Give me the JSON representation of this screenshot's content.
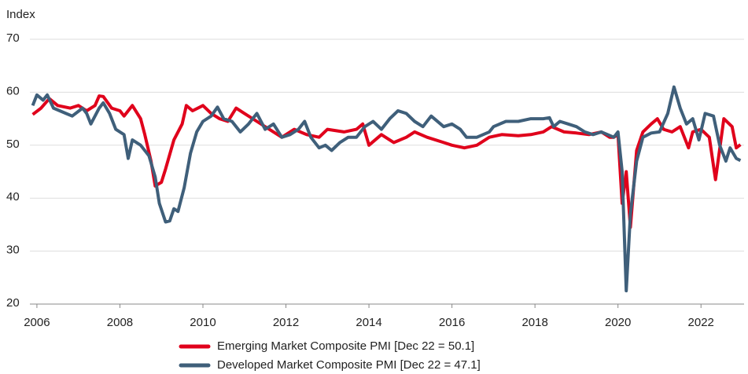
{
  "chart_data": {
    "type": "line",
    "y_label": "Index",
    "xlim": [
      2005.85,
      2023.0
    ],
    "xticks": [
      2006,
      2008,
      2010,
      2012,
      2014,
      2016,
      2018,
      2020,
      2022
    ],
    "ylim": [
      20,
      70
    ],
    "yticks": [
      20,
      30,
      40,
      50,
      60,
      70
    ],
    "grid": true,
    "legend": "bottom",
    "series": [
      {
        "name": "Emerging Market Composite PMI [Dec 22 = 50.1]",
        "color": "#e0001b",
        "x": [
          2005.9,
          2006.1,
          2006.3,
          2006.5,
          2006.8,
          2007.0,
          2007.2,
          2007.4,
          2007.5,
          2007.6,
          2007.8,
          2008.0,
          2008.1,
          2008.3,
          2008.5,
          2008.6,
          2008.75,
          2008.85,
          2009.0,
          2009.1,
          2009.3,
          2009.5,
          2009.6,
          2009.75,
          2010.0,
          2010.2,
          2010.4,
          2010.6,
          2010.8,
          2011.0,
          2011.3,
          2011.6,
          2011.9,
          2012.2,
          2012.5,
          2012.8,
          2013.0,
          2013.4,
          2013.7,
          2013.85,
          2014.0,
          2014.3,
          2014.6,
          2014.9,
          2015.1,
          2015.4,
          2015.8,
          2016.0,
          2016.3,
          2016.6,
          2016.9,
          2017.2,
          2017.6,
          2017.9,
          2018.2,
          2018.4,
          2018.7,
          2019.0,
          2019.3,
          2019.6,
          2019.8,
          2019.9,
          2020.0,
          2020.1,
          2020.2,
          2020.3,
          2020.45,
          2020.6,
          2020.8,
          2020.95,
          2021.1,
          2021.3,
          2021.5,
          2021.7,
          2021.8,
          2022.0,
          2022.2,
          2022.35,
          2022.55,
          2022.75,
          2022.85,
          2022.95
        ],
        "values": [
          55.8,
          57,
          58.8,
          57.5,
          57,
          57.5,
          56.5,
          57.5,
          59.3,
          59.2,
          57,
          56.5,
          55.5,
          57.5,
          55,
          52,
          47,
          42.3,
          43,
          45.5,
          51,
          54,
          57.5,
          56.5,
          57.5,
          56,
          55,
          54.5,
          57,
          56,
          54.5,
          53,
          51.5,
          53,
          52,
          51.5,
          53,
          52.5,
          53,
          54,
          50,
          52,
          50.5,
          51.5,
          52.5,
          51.5,
          50.5,
          50,
          49.5,
          50,
          51.5,
          52,
          51.8,
          52,
          52.5,
          53.5,
          52.5,
          52.3,
          52,
          52.5,
          51.5,
          51.5,
          52,
          39,
          45,
          34.5,
          49,
          52.5,
          54,
          55,
          53,
          52.5,
          53.5,
          49.5,
          52.5,
          53,
          51.5,
          43.5,
          55,
          53.5,
          49.5,
          50.1
        ]
      },
      {
        "name": "Developed Market Composite PMI [Dec 22 = 47.1]",
        "color": "#3f5f7a",
        "x": [
          2005.9,
          2006.0,
          2006.15,
          2006.25,
          2006.4,
          2006.7,
          2006.85,
          2007.1,
          2007.2,
          2007.3,
          2007.5,
          2007.6,
          2007.75,
          2007.9,
          2008.1,
          2008.2,
          2008.3,
          2008.5,
          2008.7,
          2008.85,
          2008.95,
          2009.1,
          2009.2,
          2009.3,
          2009.4,
          2009.55,
          2009.7,
          2009.85,
          2010.0,
          2010.2,
          2010.35,
          2010.5,
          2010.7,
          2010.9,
          2011.1,
          2011.3,
          2011.5,
          2011.7,
          2011.9,
          2012.1,
          2012.3,
          2012.45,
          2012.6,
          2012.8,
          2012.95,
          2013.1,
          2013.3,
          2013.5,
          2013.7,
          2013.9,
          2014.1,
          2014.3,
          2014.5,
          2014.7,
          2014.9,
          2015.1,
          2015.3,
          2015.5,
          2015.8,
          2016.0,
          2016.2,
          2016.35,
          2016.6,
          2016.9,
          2017.0,
          2017.3,
          2017.6,
          2017.9,
          2018.2,
          2018.35,
          2018.45,
          2018.6,
          2018.8,
          2019.0,
          2019.2,
          2019.4,
          2019.6,
          2019.9,
          2020.0,
          2020.1,
          2020.2,
          2020.3,
          2020.45,
          2020.6,
          2020.8,
          2021.0,
          2021.2,
          2021.35,
          2021.5,
          2021.65,
          2021.8,
          2021.95,
          2022.1,
          2022.3,
          2022.45,
          2022.6,
          2022.7,
          2022.85,
          2022.95
        ],
        "values": [
          57.5,
          59.5,
          58.5,
          59.5,
          57,
          56,
          55.5,
          57,
          56,
          54,
          57,
          58,
          56,
          53,
          52,
          47.5,
          51,
          50,
          48,
          44,
          39,
          35.5,
          35.7,
          38,
          37.5,
          42,
          48.5,
          52.5,
          54.5,
          55.5,
          57.2,
          55,
          54.5,
          52.5,
          54,
          56,
          53,
          54,
          51.5,
          52,
          53,
          54.5,
          51.5,
          49.5,
          50,
          49,
          50.5,
          51.5,
          51.5,
          53.5,
          54.5,
          53,
          55,
          56.5,
          56,
          54.5,
          53.5,
          55.5,
          53.5,
          54,
          53,
          51.5,
          51.5,
          52.5,
          53.5,
          54.5,
          54.5,
          55,
          55,
          55.2,
          53.5,
          54.5,
          54,
          53.5,
          52.5,
          52,
          52.5,
          51.5,
          52.5,
          45,
          22.5,
          37,
          47,
          51.5,
          52.3,
          52.5,
          56,
          61,
          57,
          54,
          55,
          51,
          56,
          55.5,
          50,
          47,
          49.5,
          47.5,
          47.1
        ]
      }
    ]
  }
}
